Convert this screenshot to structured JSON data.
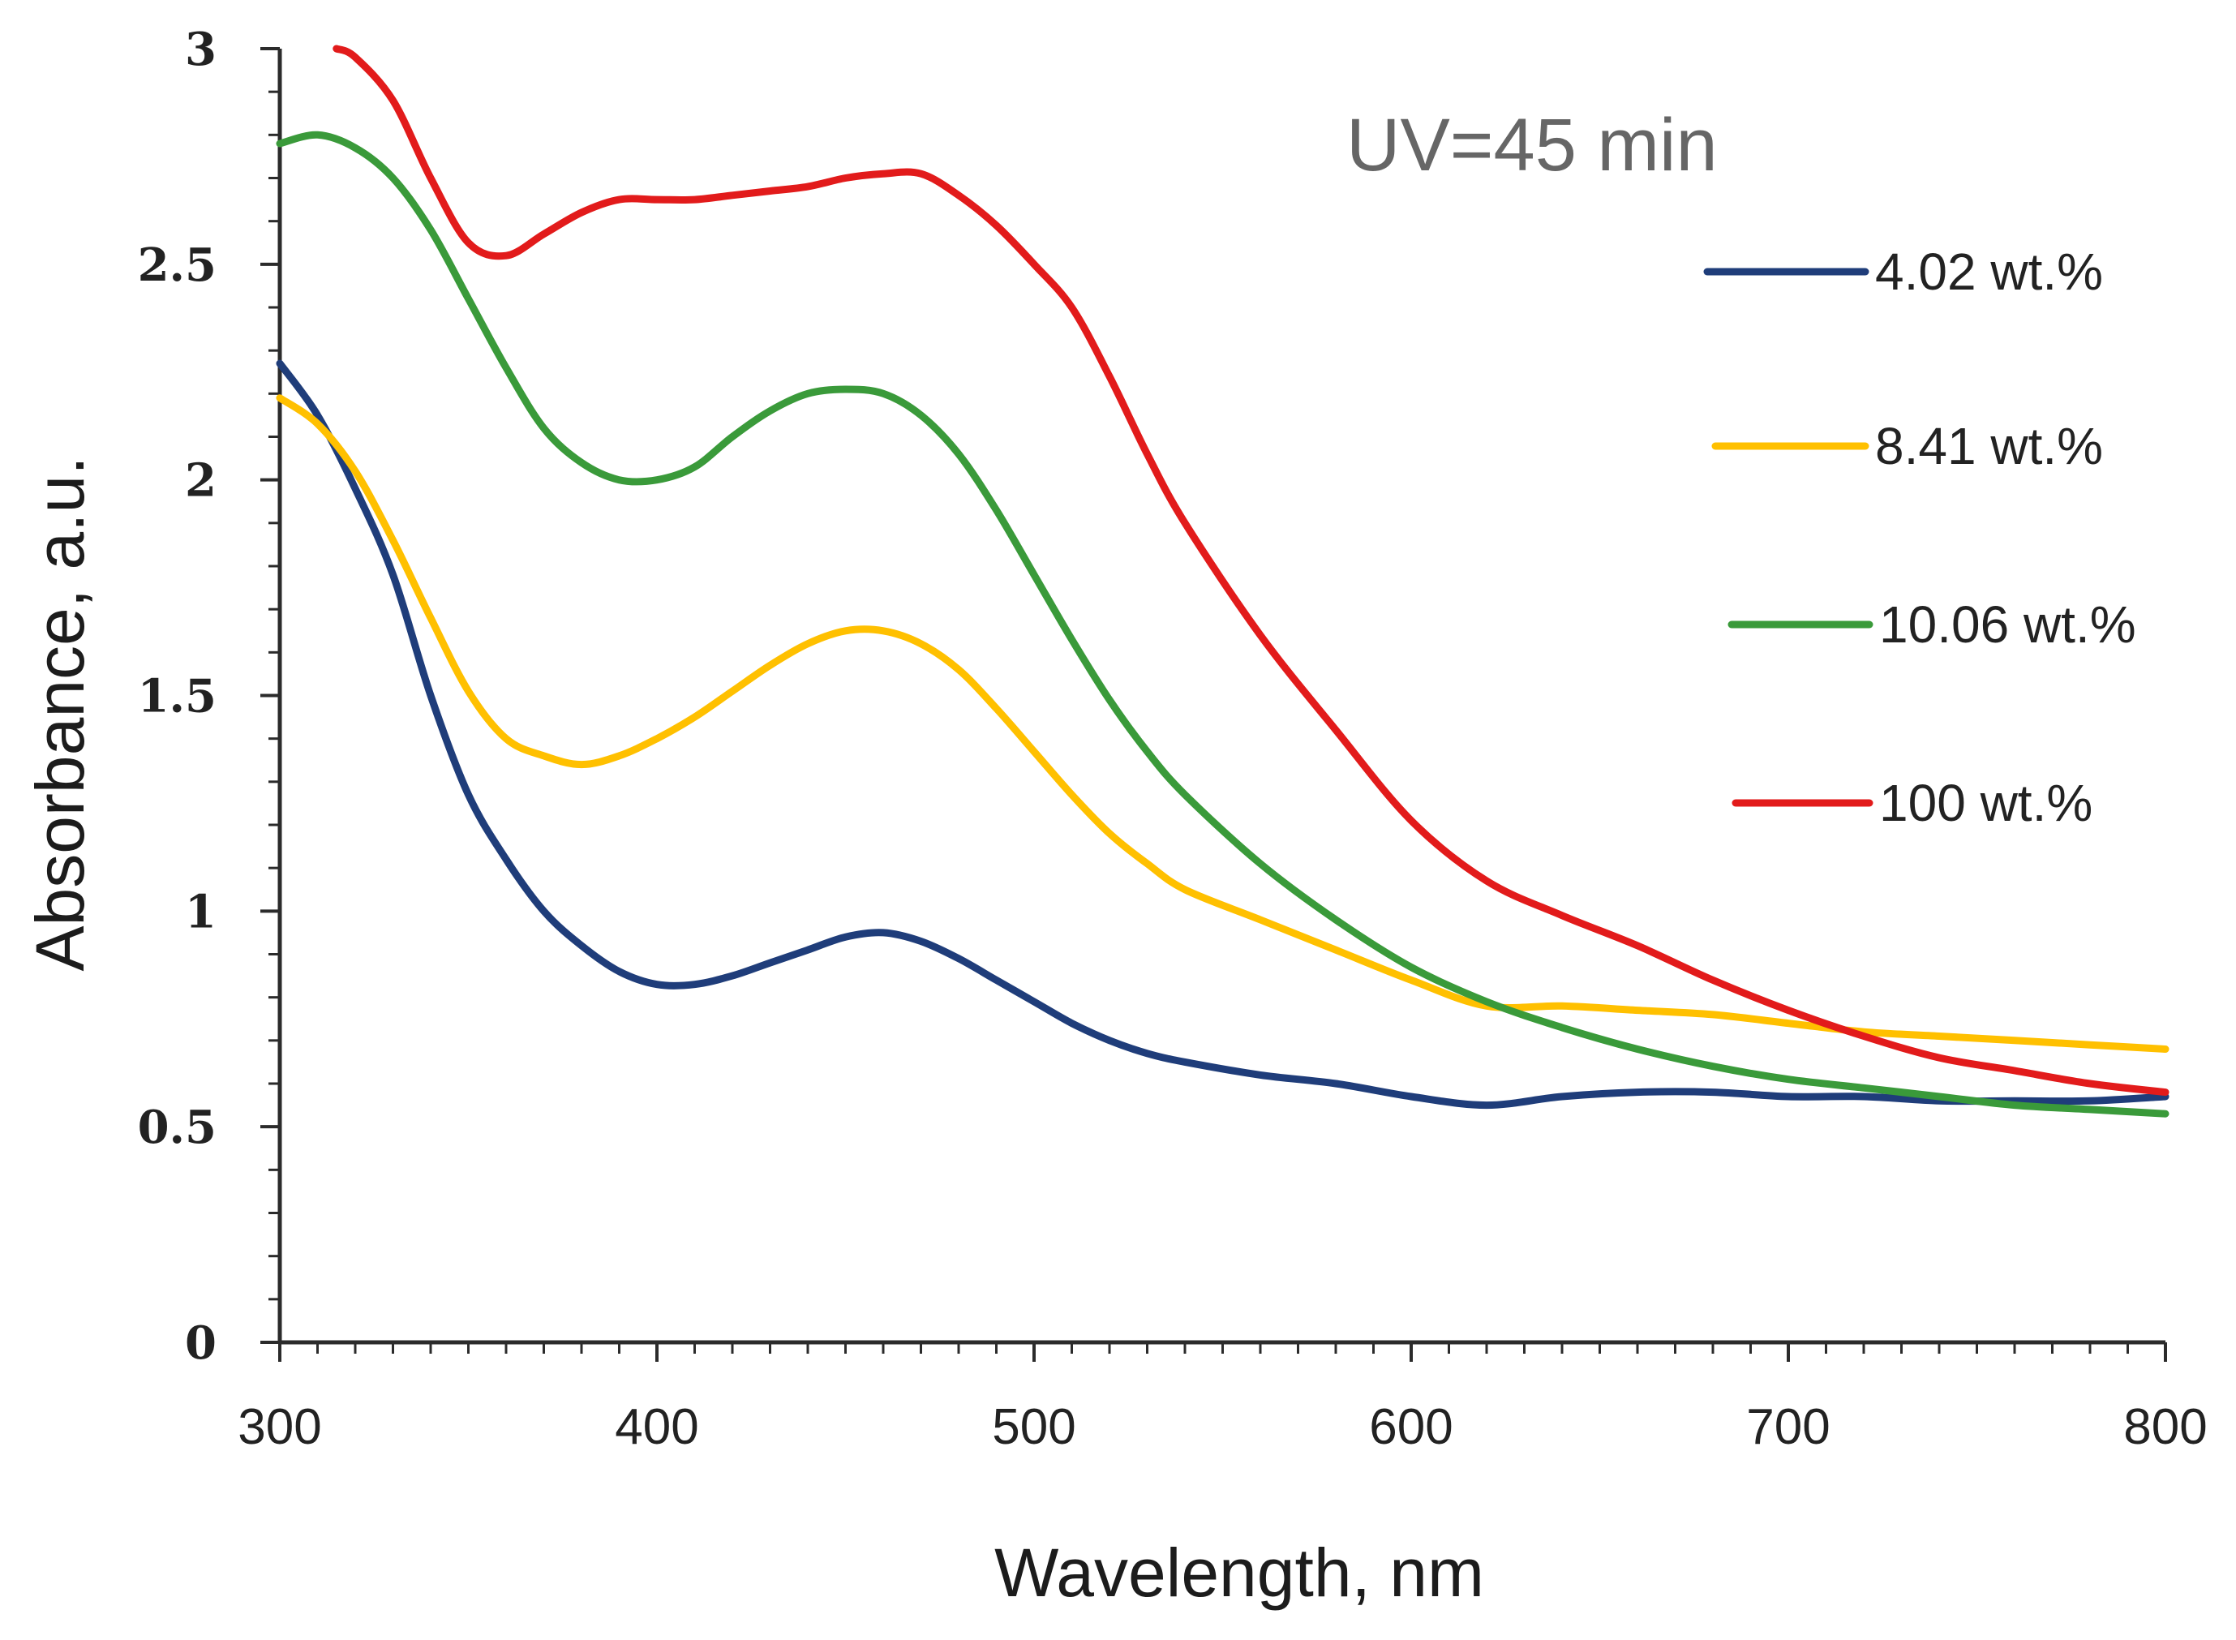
{
  "chart_data": {
    "type": "line",
    "title": "",
    "annotation": "UV=45 min",
    "xlabel": "Wavelength, nm",
    "ylabel": "Absorbance, a.u.",
    "xlim": [
      300,
      800
    ],
    "ylim": [
      0,
      3
    ],
    "grid": false,
    "legend_position": "right",
    "xticks": [
      {
        "value": 300,
        "label": "300"
      },
      {
        "value": 400,
        "label": "400"
      },
      {
        "value": 500,
        "label": "500"
      },
      {
        "value": 600,
        "label": "600"
      },
      {
        "value": 700,
        "label": "700"
      },
      {
        "value": 800,
        "label": "800"
      }
    ],
    "yticks": [
      {
        "value": 0,
        "label": "0"
      },
      {
        "value": 0.5,
        "label": "0.5"
      },
      {
        "value": 1,
        "label": "1"
      },
      {
        "value": 1.5,
        "label": "1.5"
      },
      {
        "value": 2,
        "label": "2"
      },
      {
        "value": 2.5,
        "label": "2.5"
      },
      {
        "value": 3,
        "label": "3"
      }
    ],
    "series": [
      {
        "name": "4.02 wt.%",
        "color": "#1f3d7a",
        "x": [
          300,
          310,
          320,
          330,
          340,
          350,
          360,
          370,
          380,
          390,
          400,
          410,
          420,
          430,
          440,
          450,
          460,
          470,
          480,
          490,
          500,
          510,
          520,
          530,
          540,
          560,
          580,
          600,
          620,
          640,
          660,
          680,
          700,
          720,
          740,
          760,
          780,
          800
        ],
        "values": [
          2.27,
          2.15,
          1.98,
          1.78,
          1.5,
          1.27,
          1.12,
          1.0,
          0.92,
          0.86,
          0.83,
          0.83,
          0.85,
          0.88,
          0.91,
          0.94,
          0.95,
          0.93,
          0.89,
          0.84,
          0.79,
          0.74,
          0.7,
          0.67,
          0.65,
          0.62,
          0.6,
          0.57,
          0.55,
          0.57,
          0.58,
          0.58,
          0.57,
          0.57,
          0.56,
          0.56,
          0.56,
          0.57
        ]
      },
      {
        "name": "8.41 wt.%",
        "color": "#ffc000",
        "x": [
          300,
          310,
          320,
          330,
          340,
          350,
          360,
          370,
          380,
          390,
          400,
          410,
          420,
          430,
          440,
          450,
          460,
          470,
          480,
          490,
          500,
          510,
          520,
          530,
          540,
          560,
          580,
          600,
          620,
          640,
          660,
          680,
          700,
          720,
          740,
          760,
          780,
          800
        ],
        "values": [
          2.19,
          2.13,
          2.02,
          1.86,
          1.68,
          1.51,
          1.4,
          1.36,
          1.34,
          1.36,
          1.4,
          1.45,
          1.51,
          1.57,
          1.62,
          1.65,
          1.65,
          1.62,
          1.56,
          1.47,
          1.37,
          1.27,
          1.18,
          1.11,
          1.05,
          0.98,
          0.91,
          0.84,
          0.78,
          0.78,
          0.77,
          0.76,
          0.74,
          0.72,
          0.71,
          0.7,
          0.69,
          0.68
        ]
      },
      {
        "name": "10.06 wt.%",
        "color": "#3a9a3a",
        "x": [
          300,
          310,
          320,
          330,
          340,
          350,
          360,
          370,
          380,
          390,
          400,
          410,
          420,
          430,
          440,
          450,
          460,
          470,
          480,
          490,
          500,
          510,
          520,
          530,
          540,
          560,
          580,
          600,
          620,
          640,
          660,
          680,
          700,
          720,
          740,
          760,
          780,
          800
        ],
        "values": [
          2.78,
          2.8,
          2.77,
          2.7,
          2.58,
          2.42,
          2.26,
          2.12,
          2.04,
          2.0,
          2.0,
          2.03,
          2.1,
          2.16,
          2.2,
          2.21,
          2.2,
          2.15,
          2.06,
          1.93,
          1.78,
          1.63,
          1.49,
          1.37,
          1.27,
          1.11,
          0.98,
          0.87,
          0.79,
          0.73,
          0.68,
          0.64,
          0.61,
          0.59,
          0.57,
          0.55,
          0.54,
          0.53
        ]
      },
      {
        "name": "100 wt.%",
        "color": "#e21b1b",
        "x": [
          315,
          320,
          330,
          340,
          350,
          360,
          370,
          380,
          390,
          400,
          410,
          420,
          430,
          440,
          450,
          460,
          470,
          480,
          490,
          500,
          510,
          520,
          530,
          540,
          560,
          580,
          600,
          620,
          640,
          660,
          680,
          700,
          720,
          740,
          760,
          780,
          800
        ],
        "values": [
          3.0,
          2.98,
          2.88,
          2.7,
          2.55,
          2.52,
          2.57,
          2.62,
          2.65,
          2.65,
          2.65,
          2.66,
          2.67,
          2.68,
          2.7,
          2.71,
          2.71,
          2.66,
          2.59,
          2.5,
          2.4,
          2.24,
          2.06,
          1.9,
          1.64,
          1.42,
          1.21,
          1.07,
          0.99,
          0.92,
          0.84,
          0.77,
          0.71,
          0.66,
          0.63,
          0.6,
          0.58
        ]
      }
    ]
  }
}
